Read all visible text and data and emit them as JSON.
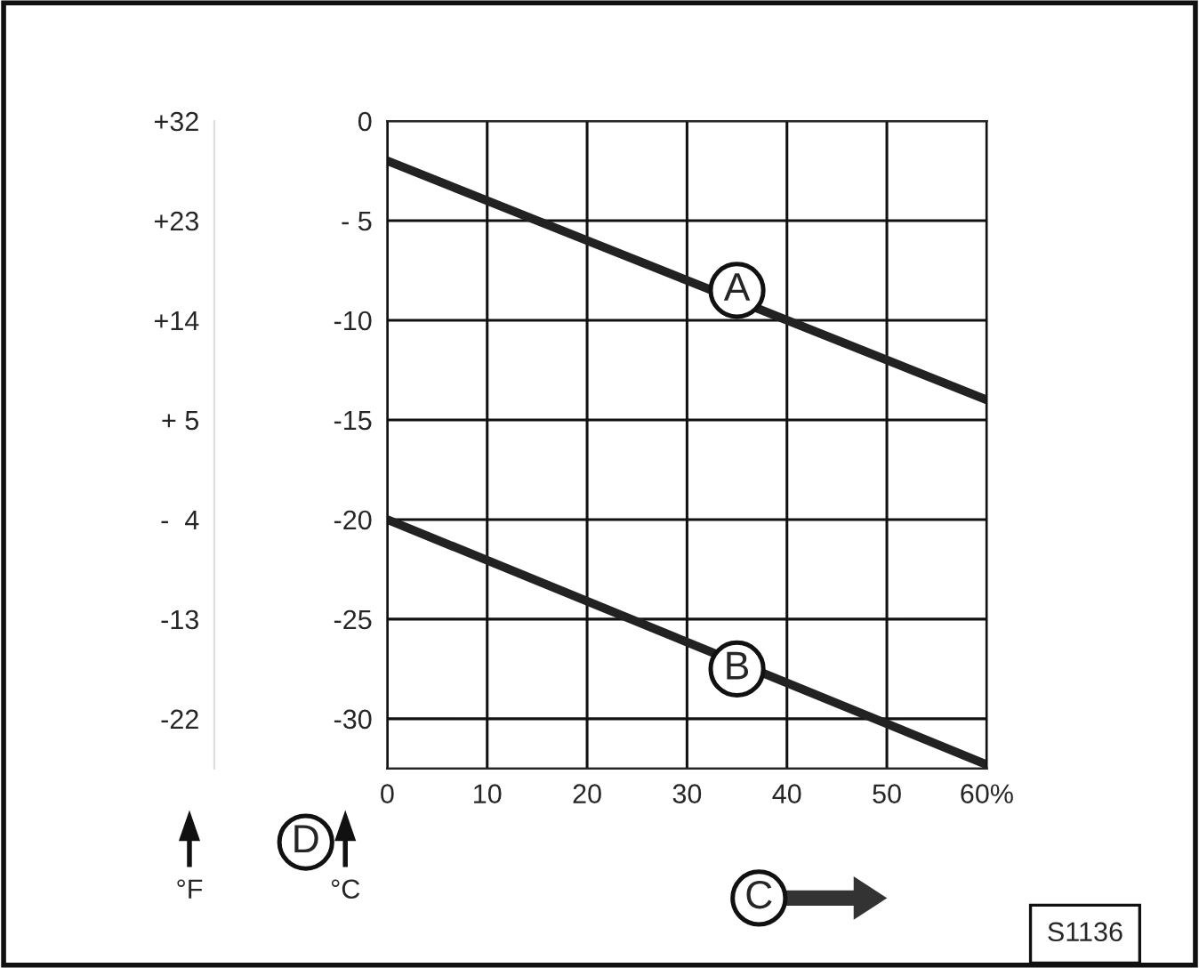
{
  "chart_data": {
    "type": "line",
    "xlabel": "C",
    "ylabel": "°C",
    "y2label": "°F",
    "x": [
      0,
      60
    ],
    "series": [
      {
        "color": "#222222",
        "values": [
          -2,
          -14
        ]
      },
      {
        "color": "#222222",
        "values": [
          -20,
          -32.3
        ]
      }
    ],
    "xlim": [
      0,
      60
    ],
    "xticks": [
      0,
      10,
      20,
      30,
      40,
      50,
      {
        "value": 60,
        "label": "60%"
      }
    ],
    "ylim": [
      -32.5,
      0
    ],
    "yticks": [
      0,
      {
        "value": -5,
        "label": "- 5"
      },
      -10,
      -15,
      -20,
      -25,
      -30
    ],
    "y2lim": [
      -26.5,
      32
    ],
    "y2ticks": [
      {
        "value": 32,
        "label": "+32"
      },
      {
        "value": 23,
        "label": "+23"
      },
      {
        "value": 14,
        "label": "+14"
      },
      {
        "value": 5,
        "label": "+ 5"
      },
      {
        "value": -4,
        "label": "-  4"
      },
      -13,
      -22
    ],
    "grid": true,
    "legend": false,
    "line_style": "solid",
    "marker": "none",
    "annotations": [
      {
        "text": "A",
        "x": 35,
        "y": -8.5
      },
      {
        "text": "B",
        "x": 35,
        "y": -27.5
      },
      "D",
      "S1136"
    ]
  }
}
